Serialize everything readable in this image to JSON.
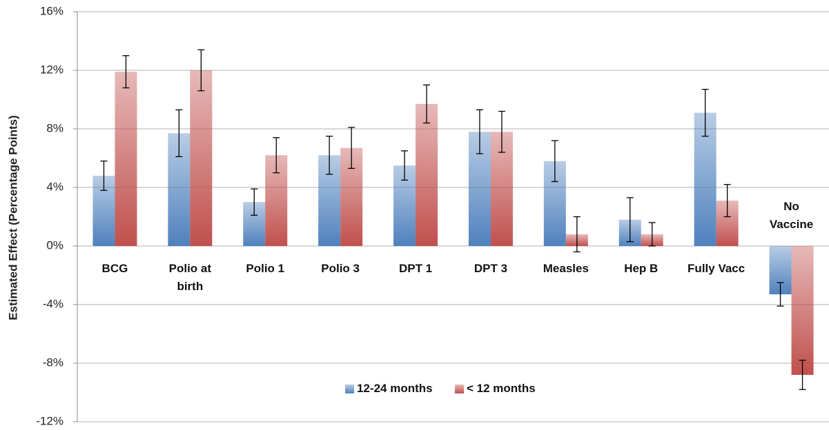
{
  "chart_data": {
    "type": "bar",
    "ylabel": "Estimated Effect (Percentage Points)",
    "categories": [
      "BCG",
      "Polio at birth",
      "Polio 1",
      "Polio 3",
      "DPT 1",
      "DPT 3",
      "Measles",
      "Hep B",
      "Fully Vacc",
      "No Vaccine"
    ],
    "series": [
      {
        "name": "12-24 months",
        "color": "#4f81bd",
        "values": [
          4.8,
          7.7,
          3.0,
          6.2,
          5.5,
          7.8,
          5.8,
          1.8,
          9.1,
          -3.3
        ],
        "errors": [
          1.0,
          1.6,
          0.9,
          1.3,
          1.0,
          1.5,
          1.4,
          1.5,
          1.6,
          0.8
        ]
      },
      {
        "name": "< 12 months",
        "color": "#c0504d",
        "values": [
          11.9,
          12.0,
          6.2,
          6.7,
          9.7,
          7.8,
          0.8,
          0.8,
          3.1,
          -8.8
        ],
        "errors": [
          1.1,
          1.4,
          1.2,
          1.4,
          1.3,
          1.4,
          1.2,
          0.8,
          1.1,
          1.0
        ]
      }
    ],
    "ylim": [
      -12,
      16
    ],
    "yticks": [
      {
        "value": -12,
        "label": "-12%"
      },
      {
        "value": -8,
        "label": "-8%"
      },
      {
        "value": -4,
        "label": "-4%"
      },
      {
        "value": 0,
        "label": "0%"
      },
      {
        "value": 4,
        "label": "4%"
      },
      {
        "value": 8,
        "label": "8%"
      },
      {
        "value": 12,
        "label": "12%"
      },
      {
        "value": 16,
        "label": "16%"
      }
    ],
    "grid": true,
    "legend": "bottom"
  }
}
